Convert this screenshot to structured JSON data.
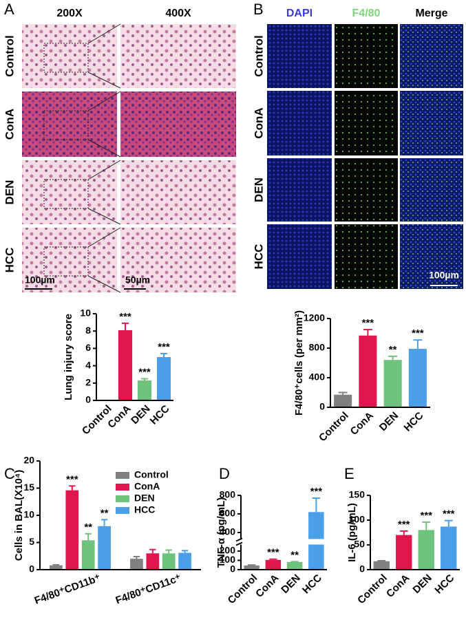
{
  "panel_labels": [
    "A",
    "B",
    "C",
    "D",
    "E"
  ],
  "micrographs_a": {
    "columns": [
      "200X",
      "400X"
    ],
    "rows": [
      "Control",
      "ConA",
      "DEN",
      "HCC"
    ],
    "scale_bars": [
      "100µm",
      "50µm"
    ]
  },
  "micrographs_b": {
    "columns": [
      "DAPI",
      "F4/80",
      "Merge"
    ],
    "column_colors": [
      "#3a3ad8",
      "#7cd67c",
      "#000000"
    ],
    "rows": [
      "Control",
      "ConA",
      "DEN",
      "HCC"
    ],
    "scale_bar": "100µm"
  },
  "chart_data": [
    {
      "type": "bar",
      "ylabel": "Lung injury score",
      "categories": [
        "Control",
        "ConA",
        "DEN",
        "HCC"
      ],
      "values": [
        0,
        8.1,
        2.3,
        5.0
      ],
      "errors": [
        0,
        0.8,
        0.2,
        0.4
      ],
      "significance": [
        null,
        "***",
        "***",
        "***"
      ],
      "colors": [
        "#808080",
        "#e0174e",
        "#6dc27c",
        "#4b9fe8"
      ],
      "ylim": [
        0,
        10
      ],
      "yticks": [
        0,
        2,
        4,
        6,
        8,
        10
      ]
    },
    {
      "type": "bar",
      "ylabel": "F4/80⁺cells (per mm²)",
      "categories": [
        "Control",
        "ConA",
        "DEN",
        "HCC"
      ],
      "values": [
        170,
        970,
        640,
        790
      ],
      "errors": [
        30,
        80,
        50,
        120
      ],
      "significance": [
        null,
        "***",
        "**",
        "***"
      ],
      "colors": [
        "#808080",
        "#e0174e",
        "#6dc27c",
        "#4b9fe8"
      ],
      "ylim": [
        0,
        1200
      ],
      "yticks": [
        0,
        400,
        800,
        1200
      ]
    },
    {
      "type": "bar",
      "ylabel": "Cells in BAL(X10⁴)",
      "categories": [
        "F4/80⁺CD11b⁺",
        "F4/80⁺CD11c⁺"
      ],
      "series": [
        {
          "name": "Control",
          "color": "#808080",
          "values": [
            0.8,
            2.0
          ],
          "errors": [
            0.1,
            0.4
          ],
          "significance": [
            null,
            null
          ]
        },
        {
          "name": "ConA",
          "color": "#e0174e",
          "values": [
            14.6,
            3.0
          ],
          "errors": [
            0.8,
            0.7
          ],
          "significance": [
            "***",
            null
          ]
        },
        {
          "name": "DEN",
          "color": "#6dc27c",
          "values": [
            5.4,
            3.0
          ],
          "errors": [
            1.2,
            0.6
          ],
          "significance": [
            "**",
            null
          ]
        },
        {
          "name": "HCC",
          "color": "#4b9fe8",
          "values": [
            8.0,
            3.1
          ],
          "errors": [
            1.2,
            0.4
          ],
          "significance": [
            "**",
            null
          ]
        }
      ],
      "ylim": [
        0,
        20
      ],
      "yticks": [
        0,
        5,
        10,
        15,
        20
      ],
      "legend": "upper right"
    },
    {
      "type": "bar",
      "ylabel": "TNF-α (pg/mL)",
      "categories": [
        "Control",
        "ConA",
        "DEN",
        "HCC"
      ],
      "values": [
        45,
        105,
        82,
        620
      ],
      "errors": [
        5,
        8,
        4,
        150
      ],
      "significance": [
        null,
        "***",
        "**",
        "***"
      ],
      "colors": [
        "#808080",
        "#e0174e",
        "#6dc27c",
        "#4b9fe8"
      ],
      "ylim": [
        0,
        800
      ],
      "yticks": [
        0,
        100,
        200,
        400,
        600,
        800
      ],
      "axis_break": true
    },
    {
      "type": "bar",
      "ylabel": "IL-6 (pg/mL)",
      "categories": [
        "Control",
        "ConA",
        "DEN",
        "HCC"
      ],
      "values": [
        17,
        70,
        80,
        87
      ],
      "errors": [
        1,
        8,
        16,
        12
      ],
      "significance": [
        null,
        "***",
        "***",
        "***"
      ],
      "colors": [
        "#808080",
        "#e0174e",
        "#6dc27c",
        "#4b9fe8"
      ],
      "ylim": [
        0,
        150
      ],
      "yticks": [
        0,
        50,
        100,
        150
      ]
    }
  ]
}
